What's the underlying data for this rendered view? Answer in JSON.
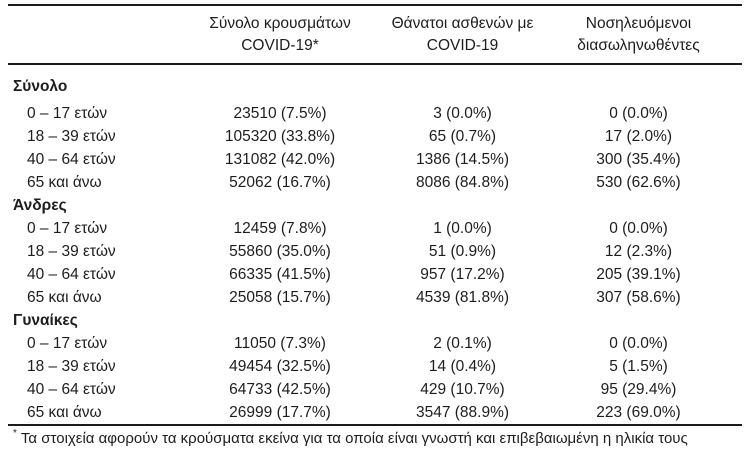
{
  "colors": {
    "text": "#1d1d1d",
    "rule": "#1b1b1b",
    "background": "#ffffff"
  },
  "table": {
    "header": {
      "blank": "",
      "cases_line1": "Σύνολο κρουσμάτων",
      "cases_line2": "COVID-19*",
      "deaths_line1": "Θάνατοι ασθενών με",
      "deaths_line2": "COVID-19",
      "intubated_line1": "Νοσηλευόμενοι",
      "intubated_line2": "διασωληνωθέντες"
    },
    "groups": [
      {
        "label": "Σύνολο",
        "rows": [
          {
            "age": "0 – 17 ετών",
            "cases": "23510 (7.5%)",
            "deaths": "3 (0.0%)",
            "intubated": "0 (0.0%)"
          },
          {
            "age": "18 – 39 ετών",
            "cases": "105320 (33.8%)",
            "deaths": "65 (0.7%)",
            "intubated": "17 (2.0%)"
          },
          {
            "age": "40 – 64 ετών",
            "cases": "131082 (42.0%)",
            "deaths": "1386 (14.5%)",
            "intubated": "300 (35.4%)"
          },
          {
            "age": "65 και άνω",
            "cases": "52062 (16.7%)",
            "deaths": "8086 (84.8%)",
            "intubated": "530 (62.6%)"
          }
        ]
      },
      {
        "label": "Άνδρες",
        "rows": [
          {
            "age": "0 – 17 ετών",
            "cases": "12459 (7.8%)",
            "deaths": "1 (0.0%)",
            "intubated": "0 (0.0%)"
          },
          {
            "age": "18 – 39 ετών",
            "cases": "55860 (35.0%)",
            "deaths": "51 (0.9%)",
            "intubated": "12 (2.3%)"
          },
          {
            "age": "40 – 64 ετών",
            "cases": "66335 (41.5%)",
            "deaths": "957 (17.2%)",
            "intubated": "205 (39.1%)"
          },
          {
            "age": "65 και άνω",
            "cases": "25058 (15.7%)",
            "deaths": "4539 (81.8%)",
            "intubated": "307 (58.6%)"
          }
        ]
      },
      {
        "label": "Γυναίκες",
        "rows": [
          {
            "age": "0 – 17 ετών",
            "cases": "11050 (7.3%)",
            "deaths": "2 (0.1%)",
            "intubated": "0 (0.0%)"
          },
          {
            "age": "18 – 39 ετών",
            "cases": "49454 (32.5%)",
            "deaths": "14 (0.4%)",
            "intubated": "5 (1.5%)"
          },
          {
            "age": "40 – 64 ετών",
            "cases": "64733 (42.5%)",
            "deaths": "429 (10.7%)",
            "intubated": "95 (29.4%)"
          },
          {
            "age": "65 και άνω",
            "cases": "26999 (17.7%)",
            "deaths": "3547 (88.9%)",
            "intubated": "223 (69.0%)"
          }
        ]
      }
    ],
    "footnote": {
      "marker": "*",
      "text": "Τα στοιχεία αφορούν τα κρούσματα εκείνα για τα οποία είναι γνωστή και επιβεβαιωμένη η ηλικία τους"
    }
  }
}
